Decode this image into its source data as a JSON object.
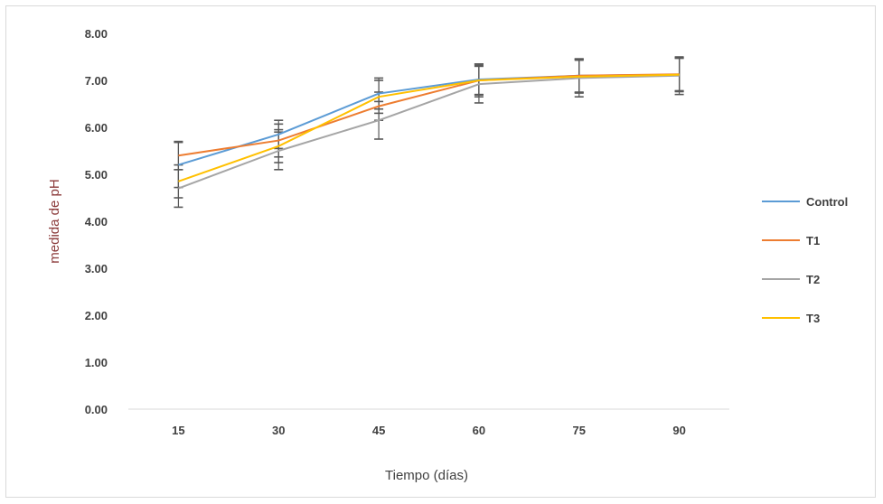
{
  "chart_data": {
    "type": "line",
    "title": "",
    "xlabel": "Tiempo (días)",
    "ylabel": "medida de pH",
    "x": [
      "15",
      "30",
      "45",
      "60",
      "75",
      "90"
    ],
    "ylim": [
      0,
      8
    ],
    "yticks": [
      "0.00",
      "1.00",
      "2.00",
      "3.00",
      "4.00",
      "5.00",
      "6.00",
      "7.00",
      "8.00"
    ],
    "grid": false,
    "legend_position": "right",
    "series": [
      {
        "name": "Control",
        "color": "#5b9bd5",
        "values": [
          5.2,
          5.85,
          6.72,
          7.02,
          7.1,
          7.12
        ],
        "errors": [
          0.48,
          0.3,
          0.33,
          0.33,
          0.36,
          0.36
        ]
      },
      {
        "name": "T1",
        "color": "#ed7d31",
        "values": [
          5.4,
          5.72,
          6.45,
          7.0,
          7.1,
          7.13
        ],
        "errors": [
          0.3,
          0.35,
          0.3,
          0.3,
          0.35,
          0.35
        ]
      },
      {
        "name": "T2",
        "color": "#a5a5a5",
        "values": [
          4.7,
          5.5,
          6.15,
          6.92,
          7.05,
          7.1
        ],
        "errors": [
          0.4,
          0.4,
          0.4,
          0.4,
          0.4,
          0.4
        ]
      },
      {
        "name": "T3",
        "color": "#ffc000",
        "values": [
          4.85,
          5.6,
          6.65,
          7.0,
          7.08,
          7.12
        ],
        "errors": [
          0.35,
          0.35,
          0.35,
          0.35,
          0.35,
          0.35
        ]
      }
    ]
  }
}
